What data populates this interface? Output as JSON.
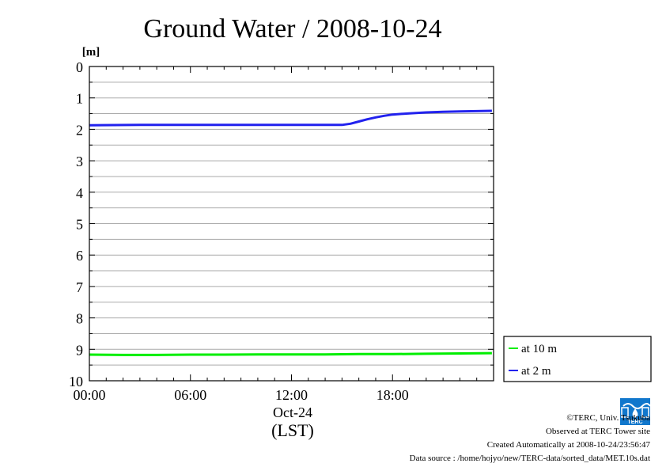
{
  "chart_data": {
    "type": "line",
    "title": "Ground Water / 2008-10-24",
    "ylabel": "[m]",
    "ylim": [
      0,
      10
    ],
    "y_inverted": true,
    "yticks": [
      "0",
      "1",
      "2",
      "3",
      "4",
      "5",
      "6",
      "7",
      "8",
      "9",
      "10"
    ],
    "xlim": [
      0,
      24
    ],
    "xticks": [
      {
        "x": 0,
        "label": "00:00"
      },
      {
        "x": 6,
        "label": "06:00"
      },
      {
        "x": 12,
        "label": "12:00"
      },
      {
        "x": 18,
        "label": "18:00"
      }
    ],
    "xlabel_date": "Oct-24",
    "xlabel_unit": "(LST)",
    "grid": "horizontal",
    "legend_position": "bottom-right",
    "series": [
      {
        "name": "at 10 m",
        "color": "#00ee00",
        "x": [
          0,
          2,
          4,
          6,
          8,
          10,
          12,
          14,
          16,
          18,
          20,
          22,
          23.9
        ],
        "y": [
          9.17,
          9.18,
          9.18,
          9.17,
          9.17,
          9.16,
          9.16,
          9.16,
          9.15,
          9.15,
          9.14,
          9.13,
          9.12
        ]
      },
      {
        "name": "at 2 m",
        "color": "#2222ee",
        "x": [
          0,
          3,
          6,
          9,
          12,
          14,
          15,
          15.5,
          16,
          16.5,
          17,
          17.5,
          18,
          19,
          20,
          21,
          22,
          23,
          23.9
        ],
        "y": [
          1.87,
          1.86,
          1.86,
          1.86,
          1.86,
          1.86,
          1.86,
          1.82,
          1.75,
          1.68,
          1.62,
          1.57,
          1.53,
          1.49,
          1.46,
          1.44,
          1.43,
          1.42,
          1.41
        ]
      }
    ]
  },
  "footer": {
    "copyright": "©TERC, Univ. Tsukuba",
    "observed": "Observed at TERC Tower site",
    "created": "Created Automatically at 2008-10-24/23:56:47",
    "source": "Data source : /home/hojyo/new/TERC-data/sorted_data/MET.10s.dat"
  },
  "logo_text": "TERC",
  "colors": {
    "frame": "#000000",
    "grid": "#aaaaaa",
    "logo": "#1177cc"
  }
}
